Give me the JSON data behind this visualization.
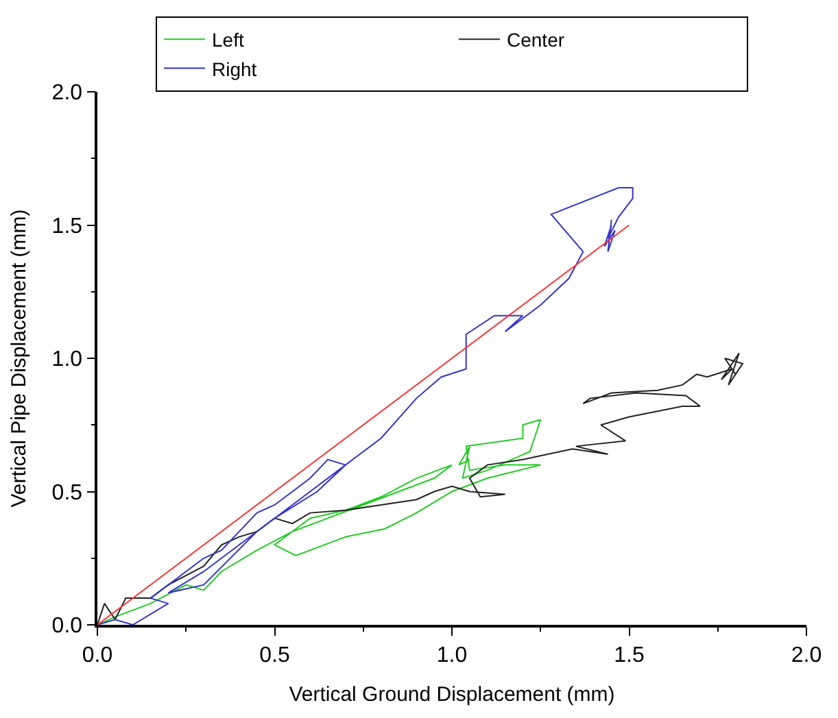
{
  "chart_data": {
    "type": "line",
    "xlabel": "Vertical Ground Displacement (mm)",
    "ylabel": "Vertical Pipe Displacement (mm)",
    "xlim": [
      0,
      2.0
    ],
    "ylim": [
      0,
      2.0
    ],
    "xticks": [
      {
        "value": 0,
        "label": "0.0"
      },
      0.5,
      {
        "value": 1.0,
        "label": "1.0"
      },
      1.5,
      {
        "value": 2.0,
        "label": "2.0"
      }
    ],
    "yticks": [
      {
        "value": 0,
        "label": "0.0"
      },
      0.5,
      {
        "value": 1.0,
        "label": "1.0"
      },
      1.5,
      {
        "value": 2.0,
        "label": "2.0"
      }
    ],
    "legend": "top",
    "marker": "none",
    "line_style": "solid",
    "series": [
      {
        "name": "Left",
        "color": "#22cc22",
        "x": [
          0,
          0.05,
          0.15,
          0.25,
          0.3,
          0.35,
          0.45,
          0.55,
          0.65,
          0.75,
          0.85,
          0.95,
          1.0,
          0.9,
          0.8,
          0.7,
          0.6,
          0.5,
          0.56,
          0.7,
          0.81,
          0.9,
          1.0,
          1.1,
          1.25,
          1.15,
          1.05,
          1.04,
          1.2,
          1.2,
          1.25,
          1.22,
          1.1,
          1.03,
          1.05,
          1.02,
          1.05
        ],
        "values": [
          0,
          0.03,
          0.08,
          0.15,
          0.13,
          0.2,
          0.28,
          0.35,
          0.4,
          0.45,
          0.5,
          0.55,
          0.6,
          0.55,
          0.48,
          0.43,
          0.4,
          0.3,
          0.26,
          0.33,
          0.36,
          0.42,
          0.5,
          0.55,
          0.6,
          0.6,
          0.58,
          0.67,
          0.7,
          0.75,
          0.77,
          0.65,
          0.58,
          0.55,
          0.67,
          0.6,
          0.62
        ]
      },
      {
        "name": "Center",
        "color": "#222222",
        "x": [
          0,
          0.02,
          0.05,
          0.08,
          0.15,
          0.2,
          0.3,
          0.35,
          0.4,
          0.45,
          0.5,
          0.55,
          0.6,
          0.7,
          0.8,
          0.9,
          0.95,
          1.0,
          1.05,
          1.15,
          1.08,
          1.05,
          1.1,
          1.2,
          1.34,
          1.44,
          1.35,
          1.49,
          1.42,
          1.5,
          1.65,
          1.7,
          1.66,
          1.52,
          1.39,
          1.37,
          1.45,
          1.58,
          1.65,
          1.69,
          1.72,
          1.79,
          1.76,
          1.81,
          1.78,
          1.82,
          1.77,
          1.8
        ],
        "values": [
          0,
          0.08,
          0.02,
          0.1,
          0.1,
          0.15,
          0.22,
          0.3,
          0.33,
          0.35,
          0.4,
          0.38,
          0.42,
          0.43,
          0.45,
          0.47,
          0.5,
          0.52,
          0.5,
          0.49,
          0.48,
          0.55,
          0.6,
          0.62,
          0.66,
          0.64,
          0.67,
          0.69,
          0.75,
          0.78,
          0.82,
          0.82,
          0.86,
          0.87,
          0.85,
          0.83,
          0.87,
          0.88,
          0.9,
          0.94,
          0.93,
          0.96,
          0.92,
          1.02,
          0.9,
          0.98,
          1.0,
          0.94
        ]
      },
      {
        "name": "Right",
        "color": "#3333cc",
        "x": [
          0,
          0.05,
          0.1,
          0.2,
          0.15,
          0.25,
          0.3,
          0.35,
          0.4,
          0.45,
          0.5,
          0.55,
          0.6,
          0.65,
          0.7,
          0.62,
          0.5,
          0.4,
          0.3,
          0.2,
          0.3,
          0.45,
          0.55,
          0.7,
          0.8,
          0.9,
          0.97,
          1.04,
          1.04,
          1.12,
          1.2,
          1.15,
          1.25,
          1.33,
          1.37,
          1.28,
          1.47,
          1.51,
          1.51,
          1.47,
          1.44,
          1.45,
          1.43,
          1.46,
          1.44,
          1.45
        ],
        "values": [
          0,
          0.02,
          0,
          0.08,
          0.1,
          0.2,
          0.25,
          0.28,
          0.35,
          0.42,
          0.45,
          0.5,
          0.55,
          0.62,
          0.6,
          0.5,
          0.4,
          0.3,
          0.2,
          0.12,
          0.15,
          0.35,
          0.45,
          0.6,
          0.7,
          0.85,
          0.93,
          0.96,
          1.09,
          1.16,
          1.16,
          1.1,
          1.2,
          1.3,
          1.4,
          1.54,
          1.64,
          1.64,
          1.6,
          1.53,
          1.45,
          1.5,
          1.42,
          1.48,
          1.4,
          1.52
        ]
      },
      {
        "type": "line",
        "color": "#ff3333",
        "x": [
          0,
          1.5
        ],
        "values": [
          0,
          1.5
        ]
      }
    ]
  }
}
